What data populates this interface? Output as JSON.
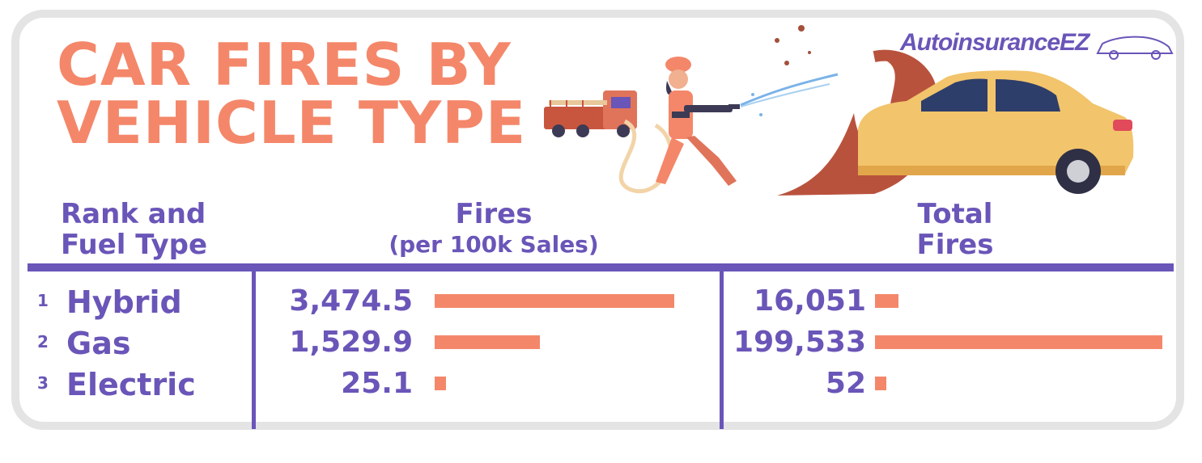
{
  "title": {
    "line1": "CAR FIRES BY",
    "line2": "VEHICLE TYPE"
  },
  "logo": {
    "text": "AutoinsuranceEZ"
  },
  "columns": {
    "rank_fuel": {
      "line1": "Rank and",
      "line2": "Fuel Type"
    },
    "fires_per_100k": {
      "line1": "Fires",
      "line2": "(per 100k Sales)"
    },
    "total_fires": {
      "line1": "Total",
      "line2": "Fires"
    }
  },
  "colors": {
    "accent": "#f4876a",
    "text": "#6a55b8",
    "frame": "#e4e4e4"
  },
  "chart_data": [
    {
      "type": "bar",
      "orientation": "horizontal",
      "title": "Fires (per 100k Sales)",
      "categories": [
        "Hybrid",
        "Gas",
        "Electric"
      ],
      "ranks": [
        "1",
        "2",
        "3"
      ],
      "values": [
        3474.5,
        1529.9,
        25.1
      ],
      "labels": [
        "3,474.5",
        "1,529.9",
        "25.1"
      ]
    },
    {
      "type": "bar",
      "orientation": "horizontal",
      "title": "Total Fires",
      "categories": [
        "Hybrid",
        "Gas",
        "Electric"
      ],
      "values": [
        16051,
        199533,
        52
      ],
      "labels": [
        "16,051",
        "199,533",
        "52"
      ]
    }
  ]
}
